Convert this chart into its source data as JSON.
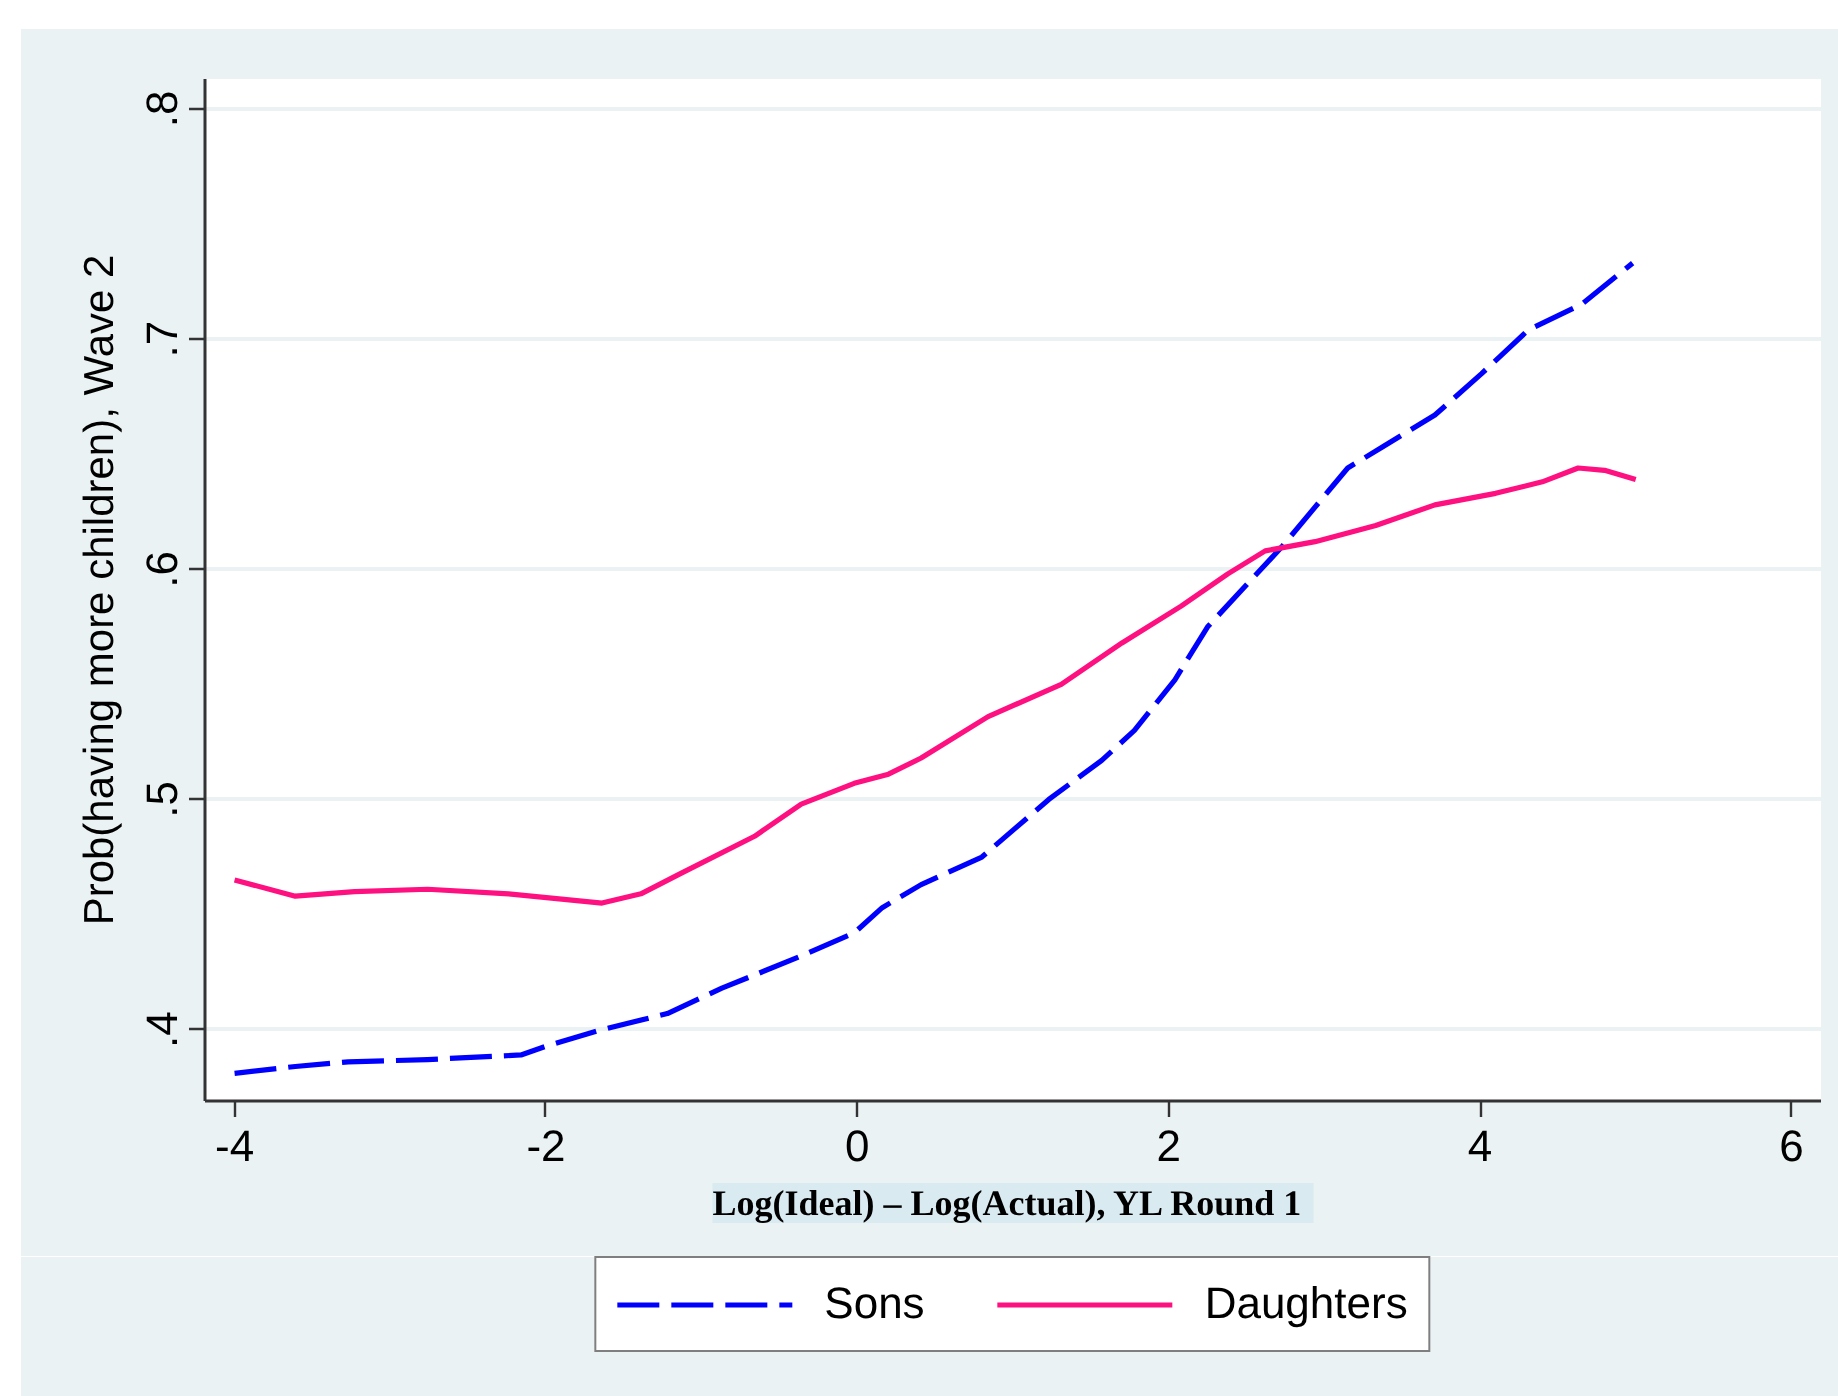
{
  "chart_data": {
    "type": "line",
    "xlabel": "Log(Ideal) – Log(Actual),  YL Round 1",
    "ylabel": "Prob(having more children), Wave 2",
    "xlim": [
      -4.19,
      6.19
    ],
    "ylim": [
      0.369,
      0.813
    ],
    "xticks": [
      -4,
      -2,
      0,
      2,
      4,
      6
    ],
    "yticks": [
      {
        "value": 0.4,
        "label": ".4"
      },
      {
        "value": 0.5,
        "label": ".5"
      },
      {
        "value": 0.6,
        "label": ".6"
      },
      {
        "value": 0.7,
        "label": ".7"
      },
      {
        "value": 0.8,
        "label": ".8"
      }
    ],
    "grid": "y",
    "legend": "bottom",
    "series": [
      {
        "name": "Sons",
        "color": "#0000ff",
        "line_style": "dashed",
        "x": [
          -4,
          -3.61,
          -3.27,
          -2.76,
          -2.16,
          -1.99,
          -1.64,
          -1.22,
          -0.87,
          -0.36,
          -0.02,
          0.16,
          0.41,
          0.8,
          1.23,
          1.57,
          1.78,
          2.04,
          2.25,
          2.73,
          3.15,
          3.37,
          3.71,
          4.01,
          4.31,
          4.65,
          4.98
        ],
        "values": [
          0.381,
          0.384,
          0.386,
          0.387,
          0.389,
          0.393,
          0.4,
          0.407,
          0.418,
          0.432,
          0.442,
          0.453,
          0.463,
          0.475,
          0.5,
          0.517,
          0.53,
          0.552,
          0.575,
          0.61,
          0.644,
          0.653,
          0.667,
          0.685,
          0.704,
          0.715,
          0.733
        ]
      },
      {
        "name": "Daughters",
        "color": "#ff1080",
        "line_style": "solid",
        "x": [
          -4,
          -3.61,
          -3.23,
          -2.76,
          -2.24,
          -1.64,
          -1.39,
          -1.13,
          -0.66,
          -0.36,
          -0.02,
          0.2,
          0.41,
          0.84,
          1.31,
          1.7,
          2.08,
          2.38,
          2.62,
          2.94,
          3.33,
          3.71,
          4.1,
          4.4,
          4.63,
          4.8,
          5
        ],
        "values": [
          0.465,
          0.458,
          0.46,
          0.461,
          0.459,
          0.455,
          0.459,
          0.468,
          0.484,
          0.498,
          0.507,
          0.511,
          0.518,
          0.536,
          0.55,
          0.568,
          0.584,
          0.598,
          0.608,
          0.612,
          0.619,
          0.628,
          0.633,
          0.638,
          0.644,
          0.643,
          0.639
        ]
      }
    ]
  }
}
